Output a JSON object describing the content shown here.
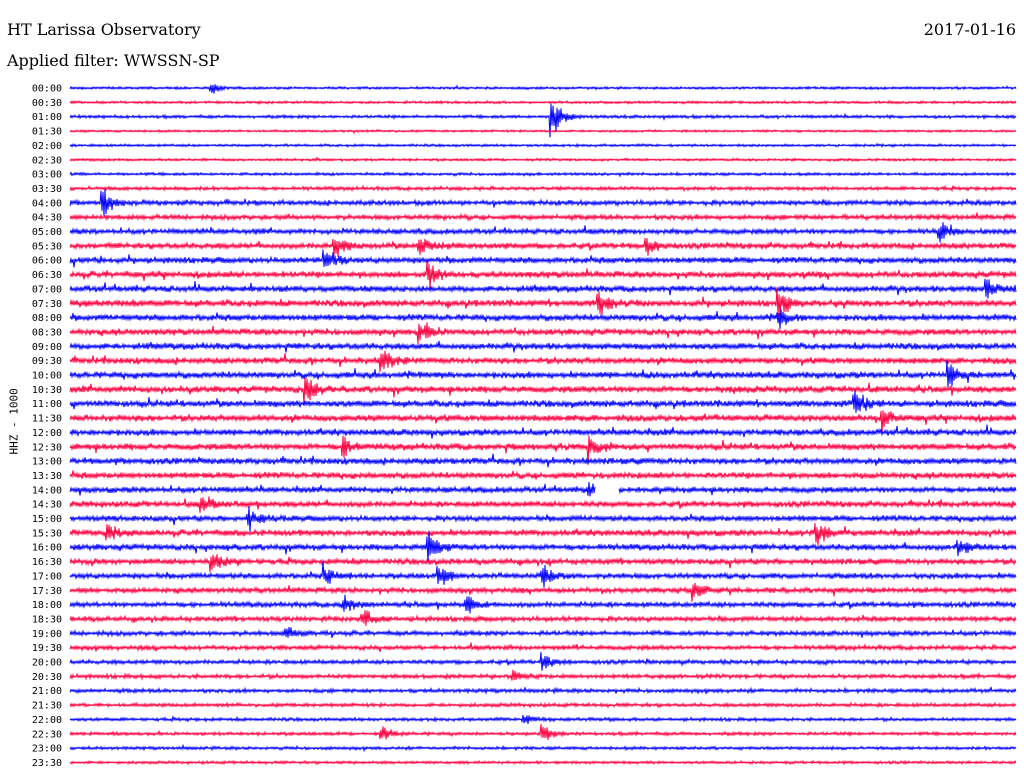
{
  "header": {
    "station": "HT Larissa Observatory",
    "date": "2017-01-16",
    "filter": "Applied filter: WWSSN-SP"
  },
  "chart_data": {
    "type": "line",
    "title": "HT Larissa Observatory",
    "subtitle": "Applied filter: WWSSN-SP",
    "ylabel": "HHZ - 1000",
    "row_labels": [
      "00:00",
      "00:30",
      "01:00",
      "01:30",
      "02:00",
      "02:30",
      "03:00",
      "03:30",
      "04:00",
      "04:30",
      "05:00",
      "05:30",
      "06:00",
      "06:30",
      "07:00",
      "07:30",
      "08:00",
      "08:30",
      "09:00",
      "09:30",
      "10:00",
      "10:30",
      "11:00",
      "11:30",
      "12:00",
      "12:30",
      "13:00",
      "13:30",
      "14:00",
      "14:30",
      "15:00",
      "15:30",
      "16:00",
      "16:30",
      "17:00",
      "17:30",
      "18:00",
      "18:30",
      "19:00",
      "19:30",
      "20:00",
      "20:30",
      "21:00",
      "21:30",
      "22:00",
      "22:30",
      "23:00",
      "23:30"
    ],
    "row_colors": [
      "#0000ff",
      "#ff0040"
    ],
    "activity_level": [
      0.25,
      0.25,
      0.35,
      0.2,
      0.25,
      0.25,
      0.3,
      0.45,
      0.7,
      0.7,
      0.75,
      0.85,
      0.9,
      0.95,
      0.95,
      1.0,
      0.95,
      0.9,
      0.95,
      0.95,
      1.0,
      1.0,
      1.0,
      1.0,
      0.95,
      1.0,
      0.95,
      0.9,
      0.85,
      0.85,
      0.85,
      0.9,
      0.9,
      0.85,
      0.8,
      0.75,
      0.75,
      0.7,
      0.65,
      0.6,
      0.55,
      0.55,
      0.5,
      0.45,
      0.4,
      0.4,
      0.35,
      0.3
    ],
    "events": [
      {
        "row": 0,
        "x": 0.15,
        "amp": 6
      },
      {
        "row": 2,
        "x": 0.51,
        "amp": 26
      },
      {
        "row": 8,
        "x": 0.035,
        "amp": 18
      },
      {
        "row": 10,
        "x": 0.92,
        "amp": 14
      },
      {
        "row": 11,
        "x": 0.28,
        "amp": 16
      },
      {
        "row": 11,
        "x": 0.37,
        "amp": 14
      },
      {
        "row": 11,
        "x": 0.61,
        "amp": 12
      },
      {
        "row": 12,
        "x": 0.27,
        "amp": 16
      },
      {
        "row": 13,
        "x": 0.38,
        "amp": 14
      },
      {
        "row": 14,
        "x": 0.97,
        "amp": 12
      },
      {
        "row": 15,
        "x": 0.56,
        "amp": 18
      },
      {
        "row": 15,
        "x": 0.75,
        "amp": 14
      },
      {
        "row": 16,
        "x": 0.75,
        "amp": 12
      },
      {
        "row": 17,
        "x": 0.37,
        "amp": 14
      },
      {
        "row": 19,
        "x": 0.33,
        "amp": 16
      },
      {
        "row": 20,
        "x": 0.93,
        "amp": 14
      },
      {
        "row": 21,
        "x": 0.25,
        "amp": 18
      },
      {
        "row": 22,
        "x": 0.83,
        "amp": 18
      },
      {
        "row": 23,
        "x": 0.86,
        "amp": 16
      },
      {
        "row": 25,
        "x": 0.55,
        "amp": 16
      },
      {
        "row": 25,
        "x": 0.29,
        "amp": 12
      },
      {
        "row": 28,
        "x": 0.55,
        "amp": 10
      },
      {
        "row": 29,
        "x": 0.14,
        "amp": 12
      },
      {
        "row": 30,
        "x": 0.19,
        "amp": 14
      },
      {
        "row": 31,
        "x": 0.04,
        "amp": 14
      },
      {
        "row": 31,
        "x": 0.79,
        "amp": 16
      },
      {
        "row": 32,
        "x": 0.38,
        "amp": 18
      },
      {
        "row": 32,
        "x": 0.94,
        "amp": 14
      },
      {
        "row": 33,
        "x": 0.15,
        "amp": 12
      },
      {
        "row": 34,
        "x": 0.27,
        "amp": 12
      },
      {
        "row": 34,
        "x": 0.39,
        "amp": 14
      },
      {
        "row": 34,
        "x": 0.5,
        "amp": 14
      },
      {
        "row": 35,
        "x": 0.66,
        "amp": 12
      },
      {
        "row": 36,
        "x": 0.29,
        "amp": 12
      },
      {
        "row": 36,
        "x": 0.42,
        "amp": 12
      },
      {
        "row": 37,
        "x": 0.31,
        "amp": 12
      },
      {
        "row": 38,
        "x": 0.23,
        "amp": 8
      },
      {
        "row": 40,
        "x": 0.5,
        "amp": 10
      },
      {
        "row": 41,
        "x": 0.47,
        "amp": 8
      },
      {
        "row": 44,
        "x": 0.48,
        "amp": 6
      },
      {
        "row": 45,
        "x": 0.33,
        "amp": 10
      },
      {
        "row": 45,
        "x": 0.5,
        "amp": 12
      }
    ],
    "gaps": [
      {
        "row": 28,
        "x_start": 0.555,
        "x_end": 0.58
      }
    ]
  }
}
